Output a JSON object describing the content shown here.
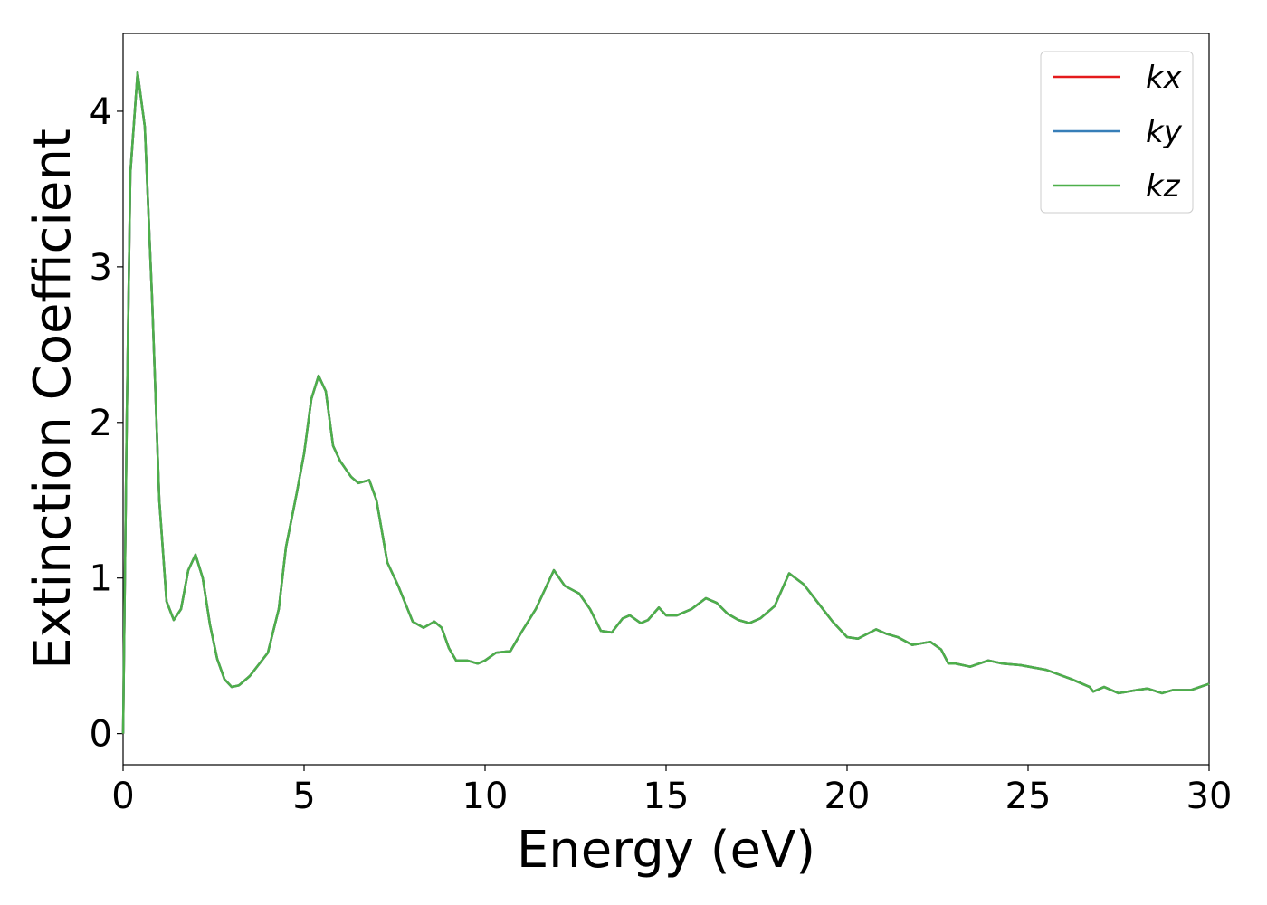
{
  "chart_data": {
    "type": "line",
    "xlabel": "Energy (eV)",
    "ylabel": "Extinction Coefficient",
    "x": [
      0,
      0.1,
      0.2,
      0.4,
      0.6,
      0.8,
      1.0,
      1.2,
      1.4,
      1.6,
      1.8,
      2.0,
      2.2,
      2.4,
      2.6,
      2.8,
      3.0,
      3.2,
      3.5,
      4.0,
      4.3,
      4.5,
      4.8,
      5.0,
      5.2,
      5.4,
      5.6,
      5.8,
      6.0,
      6.3,
      6.5,
      6.8,
      7.0,
      7.3,
      7.6,
      8.0,
      8.3,
      8.6,
      8.8,
      9.0,
      9.2,
      9.5,
      9.8,
      10.0,
      10.3,
      10.7,
      11.0,
      11.4,
      11.9,
      12.2,
      12.6,
      12.9,
      13.2,
      13.5,
      13.8,
      14.0,
      14.3,
      14.5,
      14.8,
      15.0,
      15.3,
      15.7,
      16.1,
      16.4,
      16.7,
      17.0,
      17.3,
      17.6,
      18.0,
      18.4,
      18.8,
      19.1,
      19.6,
      20.0,
      20.3,
      20.8,
      21.1,
      21.4,
      21.8,
      22.3,
      22.6,
      22.8,
      23.0,
      23.4,
      23.9,
      24.3,
      24.8,
      25.5,
      26.2,
      26.7,
      26.8,
      27.1,
      27.5,
      28.0,
      28.3,
      28.7,
      29.0,
      29.5,
      30
    ],
    "series": [
      {
        "name": "kx",
        "color": "#e41a1c",
        "values": [
          0,
          2.0,
          3.6,
          4.25,
          3.9,
          2.8,
          1.5,
          0.85,
          0.73,
          0.8,
          1.05,
          1.15,
          1.0,
          0.7,
          0.48,
          0.35,
          0.3,
          0.31,
          0.37,
          0.52,
          0.8,
          1.2,
          1.55,
          1.8,
          2.15,
          2.3,
          2.2,
          1.85,
          1.75,
          1.65,
          1.61,
          1.63,
          1.5,
          1.1,
          0.95,
          0.72,
          0.68,
          0.72,
          0.68,
          0.55,
          0.47,
          0.47,
          0.45,
          0.47,
          0.52,
          0.53,
          0.65,
          0.8,
          1.05,
          0.95,
          0.9,
          0.8,
          0.66,
          0.65,
          0.74,
          0.76,
          0.71,
          0.73,
          0.81,
          0.76,
          0.76,
          0.8,
          0.87,
          0.84,
          0.77,
          0.73,
          0.71,
          0.74,
          0.82,
          1.03,
          0.96,
          0.87,
          0.72,
          0.62,
          0.61,
          0.67,
          0.64,
          0.62,
          0.57,
          0.59,
          0.54,
          0.45,
          0.45,
          0.43,
          0.47,
          0.45,
          0.44,
          0.41,
          0.35,
          0.3,
          0.27,
          0.3,
          0.26,
          0.28,
          0.29,
          0.26,
          0.28,
          0.28,
          0.32
        ]
      },
      {
        "name": "ky",
        "color": "#377eb8",
        "values": [
          0,
          2.0,
          3.6,
          4.25,
          3.9,
          2.8,
          1.5,
          0.85,
          0.73,
          0.8,
          1.05,
          1.15,
          1.0,
          0.7,
          0.48,
          0.35,
          0.3,
          0.31,
          0.37,
          0.52,
          0.8,
          1.2,
          1.55,
          1.8,
          2.15,
          2.3,
          2.2,
          1.85,
          1.75,
          1.65,
          1.61,
          1.63,
          1.5,
          1.1,
          0.95,
          0.72,
          0.68,
          0.72,
          0.68,
          0.55,
          0.47,
          0.47,
          0.45,
          0.47,
          0.52,
          0.53,
          0.65,
          0.8,
          1.05,
          0.95,
          0.9,
          0.8,
          0.66,
          0.65,
          0.74,
          0.76,
          0.71,
          0.73,
          0.81,
          0.76,
          0.76,
          0.8,
          0.87,
          0.84,
          0.77,
          0.73,
          0.71,
          0.74,
          0.82,
          1.03,
          0.96,
          0.87,
          0.72,
          0.62,
          0.61,
          0.67,
          0.64,
          0.62,
          0.57,
          0.59,
          0.54,
          0.45,
          0.45,
          0.43,
          0.47,
          0.45,
          0.44,
          0.41,
          0.35,
          0.3,
          0.27,
          0.3,
          0.26,
          0.28,
          0.29,
          0.26,
          0.28,
          0.28,
          0.32
        ]
      },
      {
        "name": "kz",
        "color": "#4daf4a",
        "values": [
          0,
          2.0,
          3.6,
          4.25,
          3.9,
          2.8,
          1.5,
          0.85,
          0.73,
          0.8,
          1.05,
          1.15,
          1.0,
          0.7,
          0.48,
          0.35,
          0.3,
          0.31,
          0.37,
          0.52,
          0.8,
          1.2,
          1.55,
          1.8,
          2.15,
          2.3,
          2.2,
          1.85,
          1.75,
          1.65,
          1.61,
          1.63,
          1.5,
          1.1,
          0.95,
          0.72,
          0.68,
          0.72,
          0.68,
          0.55,
          0.47,
          0.47,
          0.45,
          0.47,
          0.52,
          0.53,
          0.65,
          0.8,
          1.05,
          0.95,
          0.9,
          0.8,
          0.66,
          0.65,
          0.74,
          0.76,
          0.71,
          0.73,
          0.81,
          0.76,
          0.76,
          0.8,
          0.87,
          0.84,
          0.77,
          0.73,
          0.71,
          0.74,
          0.82,
          1.03,
          0.96,
          0.87,
          0.72,
          0.62,
          0.61,
          0.67,
          0.64,
          0.62,
          0.57,
          0.59,
          0.54,
          0.45,
          0.45,
          0.43,
          0.47,
          0.45,
          0.44,
          0.41,
          0.35,
          0.3,
          0.27,
          0.3,
          0.26,
          0.28,
          0.29,
          0.26,
          0.28,
          0.28,
          0.32
        ]
      }
    ],
    "xlim": [
      0,
      30
    ],
    "xticks": [
      0,
      5,
      10,
      15,
      20,
      25,
      30
    ],
    "ylim": [
      -0.2,
      4.5
    ],
    "yticks": [
      0,
      1,
      2,
      3,
      4
    ],
    "legend": "upper right"
  }
}
